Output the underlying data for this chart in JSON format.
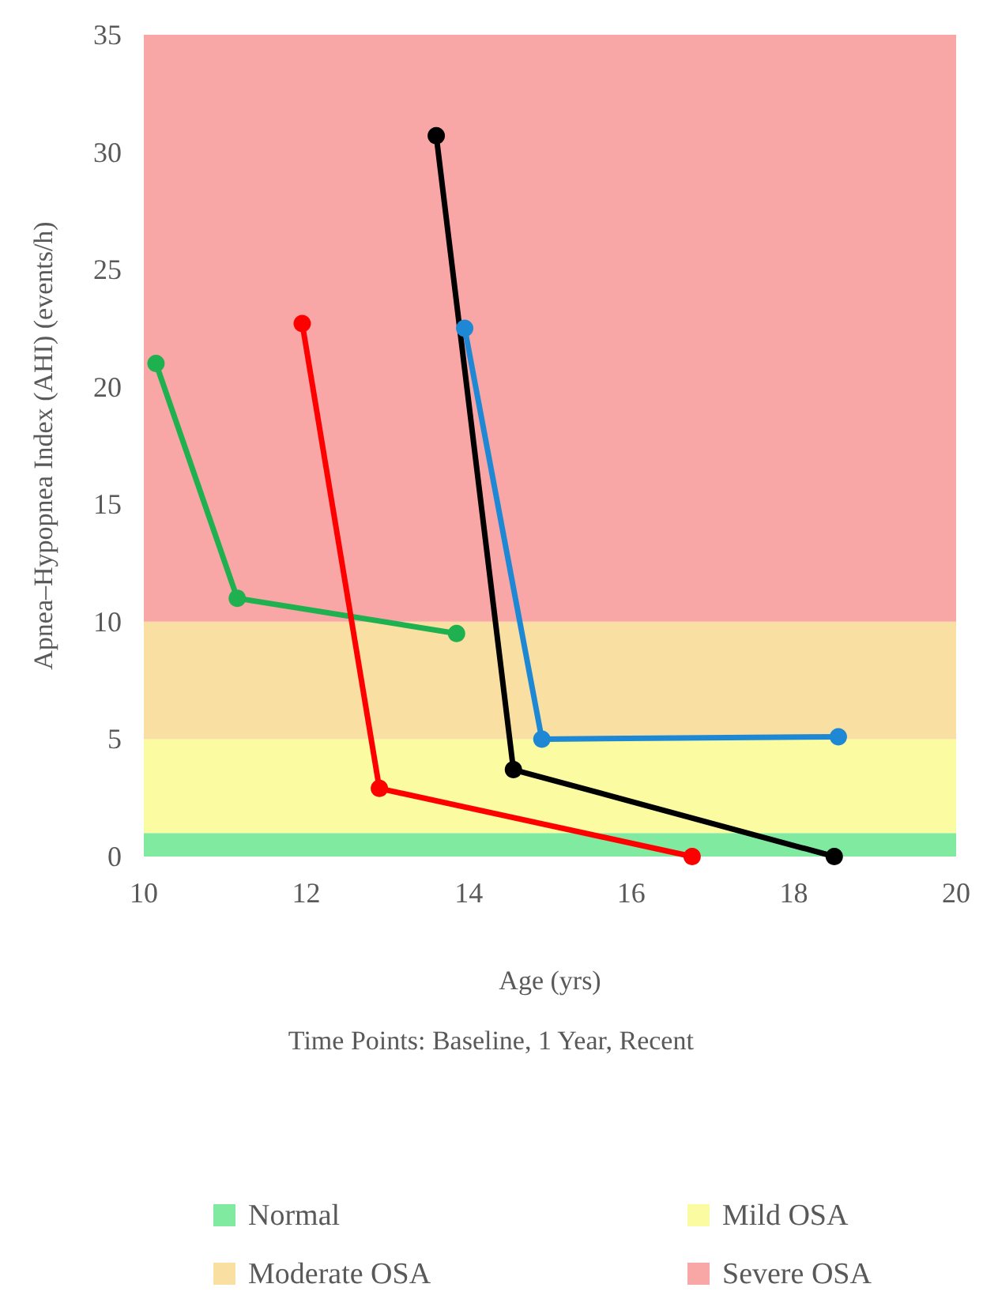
{
  "chart_data": {
    "type": "line",
    "xlabel": "Age (yrs)",
    "ylabel": "Apnea–Hypopnea Index (AHI) (events/h)",
    "annotations": [
      "Time Points: Baseline, 1 Year, Recent"
    ],
    "xlim": [
      10,
      20
    ],
    "xticks": [
      10,
      12,
      14,
      16,
      18,
      20
    ],
    "ylim": [
      0,
      35
    ],
    "yticks": [
      0,
      5,
      10,
      15,
      20,
      25,
      30,
      35
    ],
    "grid": false,
    "marker": "circle",
    "line_style": "solid",
    "legend": "bottom",
    "series": [
      {
        "color": "#1fb050",
        "x": [
          10.15,
          11.15,
          13.85
        ],
        "values": [
          21,
          11,
          9.5
        ]
      },
      {
        "color": "#ff0000",
        "x": [
          11.95,
          12.9,
          16.75
        ],
        "values": [
          22.7,
          2.9,
          0
        ]
      },
      {
        "color": "#000000",
        "x": [
          13.6,
          14.55,
          18.5
        ],
        "values": [
          30.7,
          3.7,
          0
        ]
      },
      {
        "color": "#1e88d4",
        "x": [
          13.95,
          14.9,
          18.55
        ],
        "values": [
          22.5,
          5,
          5.1
        ]
      }
    ],
    "bands": [
      {
        "axis": "y",
        "from": 0,
        "to": 1,
        "label": "Normal",
        "color": "#80eaa0"
      },
      {
        "axis": "y",
        "from": 1,
        "to": 5,
        "label": "Mild OSA",
        "color": "#fbfba2"
      },
      {
        "axis": "y",
        "from": 5,
        "to": 10,
        "label": "Moderate OSA",
        "color": "#f9e0a2"
      },
      {
        "axis": "y",
        "from": 10,
        "to": 35,
        "label": "Severe OSA",
        "color": "#f9a6a6"
      }
    ]
  }
}
